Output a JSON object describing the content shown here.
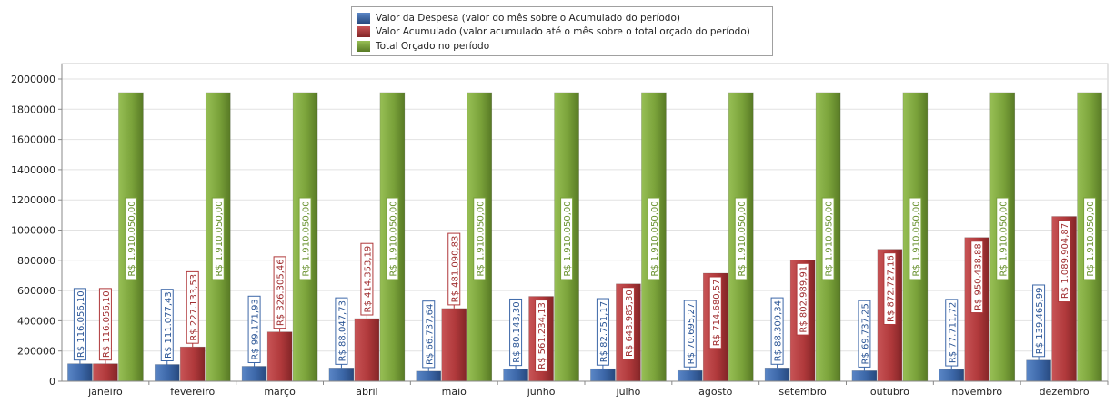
{
  "chart_data": {
    "type": "bar",
    "categories": [
      "janeiro",
      "fevereiro",
      "março",
      "abril",
      "maio",
      "junho",
      "julho",
      "agosto",
      "setembro",
      "outubro",
      "novembro",
      "dezembro"
    ],
    "series": [
      {
        "name": "Valor da Despesa (valor do mês sobre o Acumulado do período)",
        "color": "#3c67a8",
        "values": [
          116056.1,
          111077.43,
          99171.93,
          88047.73,
          66737.64,
          80143.3,
          82751.17,
          70695.27,
          88309.34,
          69737.25,
          77711.72,
          139465.99
        ],
        "labels": [
          "R$ 116.056,10",
          "R$ 111.077,43",
          "R$ 99.171,93",
          "R$ 88.047,73",
          "R$ 66.737,64",
          "R$ 80.143,30",
          "R$ 82.751,17",
          "R$ 70.695,27",
          "R$ 88.309,34",
          "R$ 69.737,25",
          "R$ 77.711,72",
          "R$ 139.465,99"
        ]
      },
      {
        "name": "Valor Acumulado (valor acumulado até o mês sobre o total orçado do período)",
        "color": "#b0393b",
        "values": [
          116056.1,
          227133.53,
          326305.46,
          414353.19,
          481090.83,
          561234.13,
          643985.3,
          714680.57,
          802989.91,
          872727.16,
          950438.88,
          1089904.87
        ],
        "labels": [
          "R$ 116.056,10",
          "R$ 227.133,53",
          "R$ 326.305,46",
          "R$ 414.353,19",
          "R$ 481.090,83",
          "R$ 561.234,13",
          "R$ 643.985,30",
          "R$ 714.680,57",
          "R$ 802.989,91",
          "R$ 872.727,16",
          "R$ 950.438,88",
          "R$ 1.089.904,87"
        ]
      },
      {
        "name": "Total Orçado no período",
        "color": "#7aa23a",
        "values": [
          1910050,
          1910050,
          1910050,
          1910050,
          1910050,
          1910050,
          1910050,
          1910050,
          1910050,
          1910050,
          1910050,
          1910050
        ],
        "labels": [
          "R$ 1.910.050,00",
          "R$ 1.910.050,00",
          "R$ 1.910.050,00",
          "R$ 1.910.050,00",
          "R$ 1.910.050,00",
          "R$ 1.910.050,00",
          "R$ 1.910.050,00",
          "R$ 1.910.050,00",
          "R$ 1.910.050,00",
          "R$ 1.910.050,00",
          "R$ 1.910.050,00",
          "R$ 1.910.050,00"
        ]
      }
    ],
    "yticks": [
      "0",
      "200000",
      "400000",
      "600000",
      "800000",
      "1000000",
      "1200000",
      "1400000",
      "1600000",
      "1800000",
      "2000000"
    ],
    "ylim": [
      0,
      2000000
    ],
    "grid": true,
    "legend_position": "top-center"
  }
}
